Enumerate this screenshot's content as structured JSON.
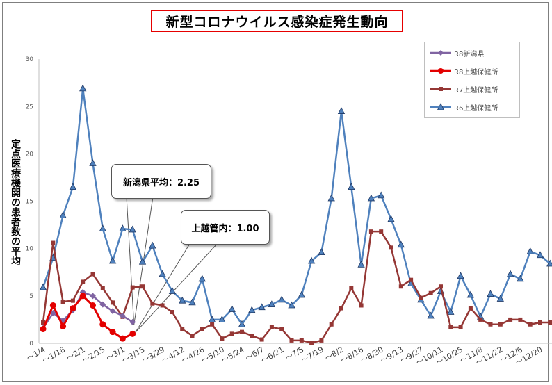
{
  "title": "新型コロナウイルス感染症発生動向",
  "y_axis_label": "定点医療機関の患者数の平均",
  "callouts": {
    "niigata": "新潟県平均：2.25",
    "joetsu": "上越管内：1.00"
  },
  "colors": {
    "R8新潟県": "#8064a2",
    "R8上越保健所": "#e30000",
    "R7上越保健所": "#953735",
    "R6上越保健所": "#4f81bd"
  },
  "chart_data": {
    "type": "line",
    "xlabel": "",
    "ylabel": "定点医療機関の患者数の平均",
    "ylim": [
      0,
      30
    ],
    "yticks": [
      0,
      5,
      10,
      15,
      20,
      25,
      30
    ],
    "grid": false,
    "legend_position": "top-right",
    "x_tick_labels": [
      "～1/4",
      "～1/18",
      "～2/1",
      "～2/15",
      "～3/1",
      "～3/15",
      "～3/29",
      "～4/12",
      "～4/26",
      "～5/10",
      "～5/24",
      "～6/7",
      "～6/21",
      "～7/5",
      "～7/19",
      "～8/2",
      "～8/16",
      "～8/30",
      "～9/13",
      "～9/27",
      "～10/11",
      "～10/25",
      "～11/8",
      "～11/22",
      "～12/6",
      "～12/20"
    ],
    "weeks": 52,
    "series": [
      {
        "name": "R8新潟県",
        "marker": "diamond",
        "values": [
          1.6,
          3.2,
          2.4,
          3.5,
          5.4,
          5.0,
          4.1,
          3.4,
          2.9,
          2.25
        ]
      },
      {
        "name": "R8上越保健所",
        "marker": "circle",
        "values": [
          1.5,
          4.0,
          1.8,
          3.7,
          5.0,
          4.0,
          2.0,
          1.2,
          0.5,
          1.0
        ]
      },
      {
        "name": "R7上越保健所",
        "marker": "square",
        "values": [
          2.2,
          10.6,
          4.4,
          4.5,
          6.5,
          7.3,
          5.8,
          4.3,
          2.8,
          5.9,
          6.0,
          4.2,
          4.0,
          3.3,
          1.5,
          0.8,
          1.5,
          2.0,
          0.5,
          1.0,
          1.2,
          0.8,
          0.4,
          1.7,
          1.5,
          0.3,
          0.3,
          0.05,
          0.3,
          2.0,
          3.7,
          5.8,
          4.0,
          11.8,
          11.8,
          10.1,
          6.0,
          6.7,
          4.8,
          5.3,
          6.0,
          1.7,
          1.7,
          3.7,
          2.5,
          2.0,
          2.0,
          2.5,
          2.5,
          2.0,
          2.2,
          2.2
        ]
      },
      {
        "name": "R6上越保健所",
        "marker": "triangle",
        "values": [
          5.9,
          9.0,
          13.5,
          16.5,
          26.9,
          19.0,
          12.1,
          8.7,
          12.1,
          12.0,
          8.6,
          10.3,
          7.3,
          5.5,
          4.5,
          4.3,
          6.8,
          2.5,
          2.5,
          3.6,
          2.0,
          3.5,
          3.8,
          4.1,
          4.6,
          4.0,
          5.1,
          8.7,
          9.6,
          15.3,
          24.5,
          16.5,
          8.3,
          15.3,
          15.6,
          13.1,
          10.4,
          6.3,
          4.6,
          2.9,
          5.5,
          3.3,
          7.1,
          5.1,
          2.8,
          5.2,
          4.7,
          7.3,
          6.8,
          9.7,
          9.3,
          8.4
        ]
      }
    ]
  }
}
